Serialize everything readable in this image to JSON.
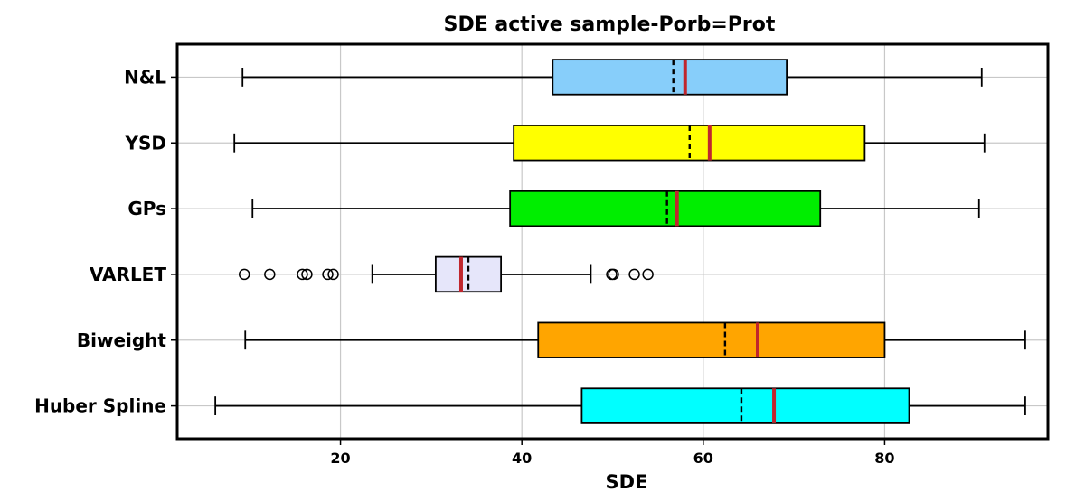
{
  "chart_data": {
    "type": "box",
    "title": "SDE active sample-Porb=Prot",
    "xlabel": "SDE",
    "ylabel": "",
    "xlim": [
      2,
      98
    ],
    "xticks": [
      20,
      40,
      60,
      80
    ],
    "grid": true,
    "orientation": "horizontal",
    "legend": "none",
    "mean_line_style": "dashed black",
    "median_line_color": "#c0262d",
    "boxes": [
      {
        "label": "N&L",
        "whisker_low": 9.2,
        "q1": 43.4,
        "median": 58.0,
        "mean": 56.7,
        "q3": 69.2,
        "whisker_high": 90.7,
        "outliers": [],
        "color": "#87cefa"
      },
      {
        "label": "YSD",
        "whisker_low": 8.3,
        "q1": 39.1,
        "median": 60.7,
        "mean": 58.5,
        "q3": 77.8,
        "whisker_high": 91.0,
        "outliers": [],
        "color": "#ffff00"
      },
      {
        "label": "GPs",
        "whisker_low": 10.3,
        "q1": 38.7,
        "median": 57.1,
        "mean": 56.0,
        "q3": 72.9,
        "whisker_high": 90.4,
        "outliers": [],
        "color": "#00ee00"
      },
      {
        "label": "VARLET",
        "whisker_low": 23.5,
        "q1": 30.5,
        "median": 33.3,
        "mean": 34.1,
        "q3": 37.7,
        "whisker_high": 47.6,
        "outliers": [
          9.4,
          12.2,
          15.8,
          16.3,
          18.6,
          19.2,
          49.9,
          50.1,
          52.4,
          53.9
        ],
        "color": "#e6e6fa"
      },
      {
        "label": "Biweight",
        "whisker_low": 9.5,
        "q1": 41.8,
        "median": 66.0,
        "mean": 62.4,
        "q3": 80.0,
        "whisker_high": 95.5,
        "outliers": [],
        "color": "#ffa500"
      },
      {
        "label": "Huber Spline",
        "whisker_low": 6.2,
        "q1": 46.6,
        "median": 67.8,
        "mean": 64.2,
        "q3": 82.7,
        "whisker_high": 95.5,
        "outliers": [],
        "color": "#00ffff"
      }
    ]
  }
}
